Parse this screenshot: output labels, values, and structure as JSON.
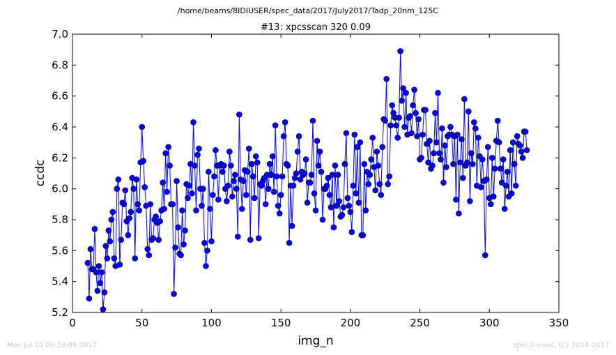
{
  "header": {
    "file_path": "/home/beams/8IDIUSER/spec_data/2017/July2017/Tadp_20nm_125C"
  },
  "footer": {
    "timestamp": "Mon Jul 10 06:28:08 2017",
    "credit": "spec2nexus, (C) 2014-2017"
  },
  "chart_data": {
    "type": "line",
    "title": "#13: xpcsscan 320 0.09",
    "xlabel": "img_n",
    "ylabel": "ccdc",
    "xlim": [
      0,
      350
    ],
    "ylim": [
      5.2,
      7.0
    ],
    "xticks": [
      "0",
      "50",
      "100",
      "150",
      "200",
      "250",
      "300",
      "350"
    ],
    "yticks": [
      "5.2",
      "5.4",
      "5.6",
      "5.8",
      "6.0",
      "6.2",
      "6.4",
      "6.6",
      "6.8",
      "7.0"
    ],
    "grid": false,
    "series_color": "#0000ff",
    "marker": "circle",
    "series": [
      {
        "x_start": 11,
        "x_step": 1,
        "values": [
          5.52,
          5.29,
          5.61,
          5.48,
          5.48,
          5.74,
          5.46,
          5.34,
          5.5,
          5.39,
          5.46,
          5.22,
          5.33,
          5.63,
          5.55,
          5.73,
          5.66,
          5.8,
          5.85,
          5.55,
          5.5,
          6.0,
          6.06,
          5.51,
          5.67,
          5.91,
          5.9,
          5.99,
          5.79,
          5.7,
          5.81,
          5.85,
          6.07,
          6.0,
          5.55,
          6.06,
          5.9,
          5.86,
          6.17,
          6.4,
          6.18,
          6.01,
          5.89,
          5.61,
          5.57,
          5.9,
          5.67,
          5.68,
          5.8,
          5.82,
          5.78,
          5.67,
          5.79,
          5.86,
          6.04,
          5.87,
          6.23,
          5.98,
          6.27,
          6.15,
          5.9,
          5.9,
          5.32,
          5.62,
          6.05,
          5.75,
          5.58,
          5.57,
          5.86,
          5.64,
          5.73,
          6.03,
          5.94,
          6.02,
          6.16,
          5.97,
          6.43,
          6.15,
          5.86,
          6.22,
          6.26,
          6.0,
          5.89,
          6.0,
          5.65,
          5.5,
          5.6,
          6.11,
          5.87,
          5.66,
          5.96,
          6.08,
          6.25,
          6.15,
          5.93,
          6.15,
          6.16,
          6.11,
          6.15,
          6.0,
          5.92,
          6.02,
          6.24,
          6.15,
          5.95,
          6.05,
          6.09,
          6.0,
          5.69,
          6.48,
          6.06,
          5.87,
          6.05,
          6.12,
          5.96,
          6.11,
          6.26,
          5.67,
          6.16,
          6.08,
          5.94,
          6.21,
          6.17,
          5.68,
          6.03,
          6.02,
          6.05,
          6.07,
          5.9,
          6.09,
          6.0,
          6.16,
          6.09,
          6.21,
          5.98,
          6.41,
          6.08,
          5.89,
          5.84,
          5.96,
          6.08,
          6.34,
          6.43,
          6.16,
          6.15,
          5.65,
          6.02,
          5.76,
          6.02,
          6.07,
          6.1,
          6.24,
          6.34,
          6.06,
          6.11,
          6.09,
          6.1,
          6.19,
          5.91,
          6.04,
          6.04,
          6.09,
          6.44,
          5.97,
          5.86,
          6.31,
          6.15,
          6.24,
          6.11,
          5.8,
          6.0,
          6.0,
          6.02,
          6.07,
          5.96,
          5.88,
          6.09,
          5.75,
          6.15,
          5.89,
          6.09,
          5.92,
          5.82,
          5.83,
          5.88,
          6.16,
          6.36,
          5.94,
          5.89,
          5.85,
          5.72,
          6.02,
          6.35,
          5.97,
          6.27,
          5.91,
          6.3,
          5.7,
          5.7,
          6.16,
          5.86,
          6.11,
          6.03,
          6.09,
          6.19,
          6.33,
          6.14,
          5.99,
          6.24,
          6.15,
          6.03,
          5.96,
          6.27,
          6.45,
          6.44,
          6.71,
          6.03,
          6.08,
          6.41,
          6.54,
          6.49,
          6.46,
          6.41,
          6.33,
          6.46,
          6.89,
          6.57,
          6.65,
          6.4,
          6.62,
          6.35,
          6.46,
          6.47,
          6.36,
          6.54,
          6.64,
          6.49,
          6.34,
          6.45,
          6.19,
          6.2,
          6.35,
          6.51,
          6.51,
          6.29,
          6.17,
          6.31,
          6.13,
          6.15,
          6.23,
          6.49,
          6.3,
          6.62,
          6.23,
          6.19,
          6.39,
          6.04,
          6.28,
          6.14,
          6.34,
          6.35,
          6.4,
          6.35,
          6.16,
          6.34,
          5.93,
          6.35,
          5.84,
          6.17,
          6.32,
          6.07,
          6.58,
          6.15,
          6.17,
          6.5,
          5.92,
          6.23,
          6.16,
          6.43,
          6.39,
          6.02,
          6.33,
          6.21,
          6.01,
          6.19,
          6.05,
          5.57,
          6.06,
          6.27,
          5.94,
          5.9,
          6.2,
          5.95,
          6.13,
          6.31,
          6.44,
          6.3,
          6.13,
          6.04,
          6.19,
          5.87,
          6.02,
          6.11,
          5.95,
          6.25,
          5.97,
          6.3,
          6.16,
          6.02,
          6.34,
          6.29,
          6.28,
          6.24,
          6.2,
          6.37,
          6.37,
          6.25
        ]
      }
    ]
  }
}
